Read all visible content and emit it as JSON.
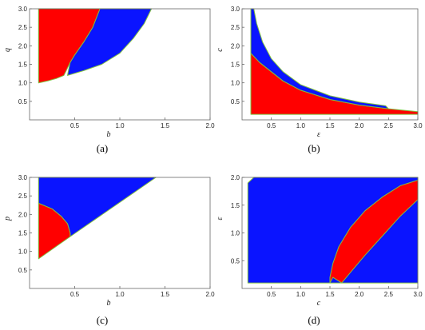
{
  "colors": {
    "region_a": "#ff0000",
    "region_b": "#0a14ff",
    "boundary": "#7fbf3f",
    "frame": "#666666"
  },
  "chart_data": [
    {
      "type": "area",
      "caption": "(a)",
      "xlabel": "b",
      "ylabel": "q",
      "xlim": [
        0,
        2.0
      ],
      "ylim": [
        0.0,
        3.0
      ],
      "xticks": [
        "0.5",
        "1.0",
        "1.5",
        "2.0"
      ],
      "yticks": [
        "0.5",
        "1.0",
        "1.5",
        "2.0",
        "2.5",
        "3.0"
      ],
      "regions": [
        {
          "color": "red",
          "points": [
            [
              0.1,
              1.0
            ],
            [
              0.2,
              1.05
            ],
            [
              0.3,
              1.12
            ],
            [
              0.38,
              1.2
            ],
            [
              0.4,
              1.3
            ],
            [
              0.45,
              1.55
            ],
            [
              0.5,
              1.75
            ],
            [
              0.6,
              2.1
            ],
            [
              0.7,
              2.5
            ],
            [
              0.78,
              3.0
            ],
            [
              0.1,
              3.0
            ]
          ]
        },
        {
          "color": "blue",
          "points": [
            [
              0.42,
              1.2
            ],
            [
              0.6,
              1.33
            ],
            [
              0.8,
              1.5
            ],
            [
              1.0,
              1.8
            ],
            [
              1.15,
              2.2
            ],
            [
              1.27,
              2.6
            ],
            [
              1.35,
              3.0
            ],
            [
              0.78,
              3.0
            ],
            [
              0.7,
              2.5
            ],
            [
              0.6,
              2.1
            ],
            [
              0.5,
              1.75
            ],
            [
              0.45,
              1.55
            ]
          ]
        }
      ]
    },
    {
      "type": "area",
      "caption": "(b)",
      "xlabel": "ε",
      "ylabel": "c",
      "xlim": [
        0,
        3.0
      ],
      "ylim": [
        0.0,
        3.0
      ],
      "xticks": [
        "0.5",
        "1.0",
        "1.5",
        "2.0",
        "2.5",
        "3.0"
      ],
      "yticks": [
        "0.5",
        "1.0",
        "1.5",
        "2.0",
        "2.5",
        "3.0"
      ],
      "regions": [
        {
          "color": "red",
          "points": [
            [
              0.15,
              0.15
            ],
            [
              3.0,
              0.15
            ],
            [
              3.0,
              0.22
            ],
            [
              2.5,
              0.3
            ],
            [
              2.0,
              0.4
            ],
            [
              1.5,
              0.55
            ],
            [
              1.0,
              0.8
            ],
            [
              0.7,
              1.05
            ],
            [
              0.5,
              1.3
            ],
            [
              0.3,
              1.55
            ],
            [
              0.15,
              1.8
            ]
          ]
        },
        {
          "color": "blue",
          "points": [
            [
              0.15,
              1.8
            ],
            [
              0.3,
              1.55
            ],
            [
              0.5,
              1.3
            ],
            [
              0.7,
              1.05
            ],
            [
              1.0,
              0.8
            ],
            [
              1.5,
              0.55
            ],
            [
              2.0,
              0.4
            ],
            [
              2.5,
              0.3
            ],
            [
              2.45,
              0.38
            ],
            [
              2.0,
              0.48
            ],
            [
              1.5,
              0.65
            ],
            [
              1.0,
              0.95
            ],
            [
              0.7,
              1.3
            ],
            [
              0.5,
              1.65
            ],
            [
              0.35,
              2.1
            ],
            [
              0.25,
              2.6
            ],
            [
              0.2,
              3.0
            ],
            [
              0.15,
              3.0
            ]
          ]
        }
      ]
    },
    {
      "type": "area",
      "caption": "(c)",
      "xlabel": "b",
      "ylabel": "p",
      "xlim": [
        0,
        2.0
      ],
      "ylim": [
        0.0,
        3.0
      ],
      "xticks": [
        "0.5",
        "1.0",
        "1.5",
        "2.0"
      ],
      "yticks": [
        "0.5",
        "1.0",
        "1.5",
        "2.0",
        "2.5",
        "3.0"
      ],
      "regions": [
        {
          "color": "blue",
          "points": [
            [
              0.1,
              2.3
            ],
            [
              0.1,
              3.0
            ],
            [
              1.4,
              3.0
            ],
            [
              0.45,
              1.4
            ],
            [
              0.45,
              1.5
            ],
            [
              0.42,
              1.75
            ],
            [
              0.35,
              1.95
            ],
            [
              0.25,
              2.15
            ]
          ]
        },
        {
          "color": "red",
          "points": [
            [
              0.1,
              0.8
            ],
            [
              0.45,
              1.4
            ],
            [
              0.45,
              1.5
            ],
            [
              0.42,
              1.75
            ],
            [
              0.35,
              1.95
            ],
            [
              0.25,
              2.15
            ],
            [
              0.1,
              2.3
            ]
          ]
        }
      ]
    },
    {
      "type": "area",
      "caption": "(d)",
      "xlabel": "c",
      "ylabel": "ε",
      "xlim": [
        0,
        3.0
      ],
      "ylim": [
        0.0,
        2.0
      ],
      "xticks": [
        "0.5",
        "1.0",
        "1.5",
        "2.0",
        "2.5",
        "3.0"
      ],
      "yticks": [
        "0.5",
        "1.0",
        "1.5",
        "2.0"
      ],
      "regions": [
        {
          "color": "blue",
          "points": [
            [
              0.1,
              0.1
            ],
            [
              0.1,
              1.9
            ],
            [
              0.2,
              2.0
            ],
            [
              3.0,
              2.0
            ],
            [
              3.0,
              0.1
            ]
          ]
        },
        {
          "color": "red",
          "points": [
            [
              1.5,
              0.1
            ],
            [
              1.55,
              0.2
            ],
            [
              1.7,
              0.1
            ],
            [
              1.9,
              0.35
            ],
            [
              2.1,
              0.6
            ],
            [
              2.4,
              0.95
            ],
            [
              2.7,
              1.3
            ],
            [
              3.0,
              1.6
            ],
            [
              3.0,
              1.95
            ],
            [
              2.7,
              1.85
            ],
            [
              2.4,
              1.65
            ],
            [
              2.1,
              1.4
            ],
            [
              1.85,
              1.1
            ],
            [
              1.65,
              0.75
            ],
            [
              1.55,
              0.45
            ],
            [
              1.5,
              0.2
            ]
          ]
        }
      ]
    }
  ]
}
